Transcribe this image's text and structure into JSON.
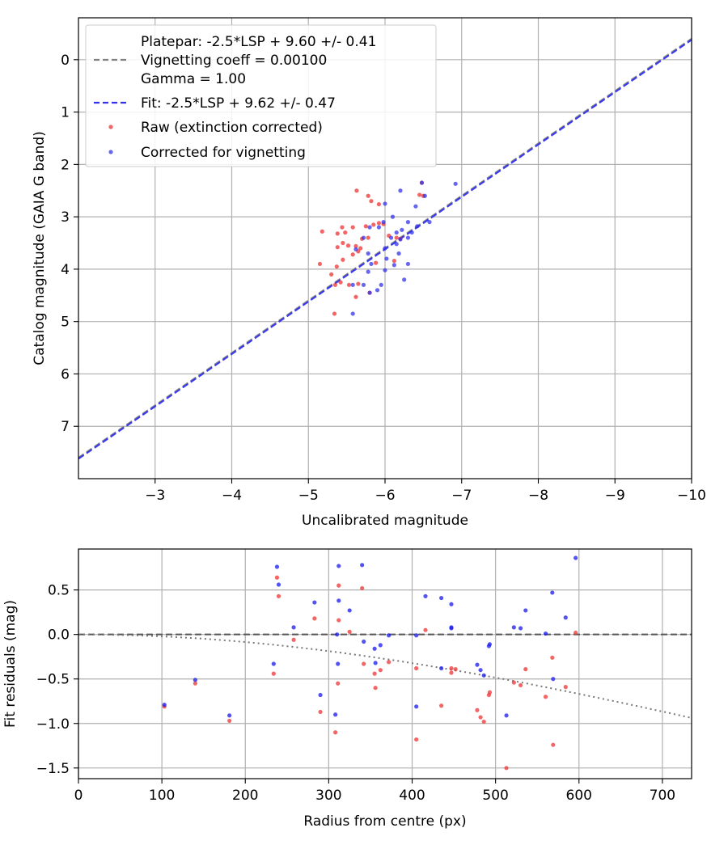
{
  "chart_data": [
    {
      "type": "scatter",
      "xlabel": "Uncalibrated magnitude",
      "ylabel": "Catalog magnitude (GAIA G band)",
      "xlim": [
        -2,
        -10
      ],
      "ylim": [
        8,
        -0.8
      ],
      "x_ticks": [
        -3,
        -4,
        -5,
        -6,
        -7,
        -8,
        -9,
        -10
      ],
      "x_tick_labels": [
        "−3",
        "−4",
        "−5",
        "−6",
        "−7",
        "−8",
        "−9",
        "−10"
      ],
      "y_ticks": [
        0,
        1,
        2,
        3,
        4,
        5,
        6,
        7
      ],
      "y_tick_labels": [
        "0",
        "1",
        "2",
        "3",
        "4",
        "5",
        "6",
        "7"
      ],
      "grid": true,
      "legend_position": "top-left",
      "legend": [
        "Platepar: -2.5*LSP + 9.60 +/- 0.41",
        "Vignetting coeff = 0.00100",
        "Gamma = 1.00",
        "Fit: -2.5*LSP + 9.62 +/- 0.47",
        "Raw (extinction corrected)",
        "Corrected for vignetting"
      ],
      "lines": [
        {
          "name": "Platepar",
          "style": "dashed",
          "color": "#808080",
          "slope": -2.5,
          "intercept": 9.6
        },
        {
          "name": "Fit",
          "style": "dashed",
          "color": "#3333ee",
          "slope": -2.5,
          "intercept": 9.62
        }
      ],
      "series": [
        {
          "name": "Raw (extinction corrected)",
          "color": "#ee3333",
          "points": [
            [
              -6.48,
              2.35
            ],
            [
              -5.63,
              2.5
            ],
            [
              -5.78,
              2.6
            ],
            [
              -5.82,
              2.7
            ],
            [
              -5.92,
              2.76
            ],
            [
              -6.5,
              2.6
            ],
            [
              -5.58,
              3.2
            ],
            [
              -5.75,
              3.18
            ],
            [
              -5.85,
              3.15
            ],
            [
              -5.92,
              3.12
            ],
            [
              -5.98,
              3.14
            ],
            [
              -5.18,
              3.28
            ],
            [
              -5.38,
              3.32
            ],
            [
              -5.44,
              3.2
            ],
            [
              -5.48,
              3.3
            ],
            [
              -5.7,
              3.42
            ],
            [
              -5.78,
              3.4
            ],
            [
              -6.05,
              3.36
            ],
            [
              -6.15,
              3.4
            ],
            [
              -5.38,
              3.58
            ],
            [
              -5.45,
              3.5
            ],
            [
              -5.52,
              3.55
            ],
            [
              -5.62,
              3.56
            ],
            [
              -5.68,
              3.6
            ],
            [
              -5.15,
              3.9
            ],
            [
              -5.37,
              3.95
            ],
            [
              -5.45,
              3.82
            ],
            [
              -5.58,
              3.72
            ],
            [
              -5.65,
              3.66
            ],
            [
              -5.88,
              3.88
            ],
            [
              -6.12,
              3.84
            ],
            [
              -5.3,
              4.1
            ],
            [
              -5.35,
              4.3
            ],
            [
              -5.42,
              4.25
            ],
            [
              -5.53,
              4.3
            ],
            [
              -5.65,
              4.28
            ],
            [
              -5.8,
              4.45
            ],
            [
              -5.62,
              4.53
            ],
            [
              -5.34,
              4.85
            ],
            [
              -6.2,
              3.42
            ],
            [
              -6.45,
              2.58
            ]
          ]
        },
        {
          "name": "Corrected for vignetting",
          "color": "#3333ee",
          "points": [
            [
              -6.92,
              2.37
            ],
            [
              -6.52,
              2.6
            ],
            [
              -6.48,
              2.35
            ],
            [
              -6.2,
              2.5
            ],
            [
              -6.4,
              2.8
            ],
            [
              -6.0,
              2.75
            ],
            [
              -6.1,
              3.0
            ],
            [
              -5.92,
              3.2
            ],
            [
              -6.58,
              3.1
            ],
            [
              -6.3,
              3.1
            ],
            [
              -6.35,
              3.3
            ],
            [
              -6.42,
              3.18
            ],
            [
              -6.15,
              3.3
            ],
            [
              -5.98,
              3.1
            ],
            [
              -5.8,
              3.2
            ],
            [
              -5.72,
              3.4
            ],
            [
              -6.08,
              3.4
            ],
            [
              -6.22,
              3.25
            ],
            [
              -6.3,
              3.4
            ],
            [
              -5.62,
              3.62
            ],
            [
              -5.78,
              3.7
            ],
            [
              -6.0,
              3.6
            ],
            [
              -6.15,
              3.52
            ],
            [
              -6.02,
              3.8
            ],
            [
              -6.12,
              3.92
            ],
            [
              -6.3,
              3.9
            ],
            [
              -6.18,
              3.7
            ],
            [
              -5.82,
              3.9
            ],
            [
              -6.0,
              4.02
            ],
            [
              -5.78,
              4.05
            ],
            [
              -6.25,
              4.2
            ],
            [
              -5.72,
              4.3
            ],
            [
              -5.9,
              4.4
            ],
            [
              -5.95,
              4.3
            ],
            [
              -5.8,
              4.45
            ],
            [
              -5.58,
              4.3
            ],
            [
              -5.58,
              4.85
            ],
            [
              -6.2,
              3.43
            ]
          ]
        }
      ]
    },
    {
      "type": "scatter",
      "xlabel": "Radius from centre (px)",
      "ylabel": "Fit residuals (mag)",
      "xlim": [
        0,
        735
      ],
      "ylim": [
        -1.62,
        0.96
      ],
      "x_ticks": [
        0,
        100,
        200,
        300,
        400,
        500,
        600,
        700
      ],
      "x_tick_labels": [
        "0",
        "100",
        "200",
        "300",
        "400",
        "500",
        "600",
        "700"
      ],
      "y_ticks": [
        0.5,
        0,
        -0.5,
        -1,
        -1.5
      ],
      "y_tick_labels": [
        "0.5",
        "0.0",
        "−0.5",
        "−1.0",
        "−1.5"
      ],
      "grid": true,
      "lines": [
        {
          "name": "zero",
          "style": "dashed",
          "color": "#555555",
          "y": 0
        },
        {
          "name": "vignetting",
          "style": "dotted",
          "color": "#777777",
          "coeff": 0.001
        }
      ],
      "series": [
        {
          "name": "",
          "color": "#ee3333",
          "points": [
            [
              103,
              -0.81
            ],
            [
              140,
              -0.55
            ],
            [
              181,
              -0.97
            ],
            [
              234,
              -0.44
            ],
            [
              238,
              0.64
            ],
            [
              240,
              0.43
            ],
            [
              258,
              -0.06
            ],
            [
              283,
              0.18
            ],
            [
              290,
              -0.87
            ],
            [
              308,
              -1.1
            ],
            [
              312,
              0.55
            ],
            [
              312,
              0.16
            ],
            [
              311,
              -0.55
            ],
            [
              325,
              0.03
            ],
            [
              340,
              0.52
            ],
            [
              342,
              -0.33
            ],
            [
              355,
              -0.44
            ],
            [
              356,
              -0.6
            ],
            [
              362,
              -0.4
            ],
            [
              372,
              -0.31
            ],
            [
              405,
              -1.18
            ],
            [
              405,
              -0.38
            ],
            [
              416,
              0.05
            ],
            [
              435,
              -0.8
            ],
            [
              447,
              -0.38
            ],
            [
              447,
              -0.43
            ],
            [
              452,
              -0.39
            ],
            [
              478,
              -0.85
            ],
            [
              482,
              -0.93
            ],
            [
              486,
              -0.98
            ],
            [
              492,
              -0.68
            ],
            [
              493,
              -0.65
            ],
            [
              513,
              -1.5
            ],
            [
              522,
              -0.54
            ],
            [
              530,
              -0.57
            ],
            [
              536,
              -0.39
            ],
            [
              568,
              -0.26
            ],
            [
              569,
              -1.24
            ],
            [
              584,
              -0.59
            ],
            [
              596,
              0.02
            ],
            [
              560,
              -0.7
            ]
          ]
        },
        {
          "name": "",
          "color": "#1a1aee",
          "points": [
            [
              103,
              -0.79
            ],
            [
              140,
              -0.51
            ],
            [
              181,
              -0.91
            ],
            [
              234,
              -0.33
            ],
            [
              238,
              0.76
            ],
            [
              240,
              0.56
            ],
            [
              258,
              0.08
            ],
            [
              283,
              0.36
            ],
            [
              290,
              -0.68
            ],
            [
              308,
              -0.9
            ],
            [
              312,
              0.77
            ],
            [
              312,
              0.38
            ],
            [
              311,
              -0.33
            ],
            [
              310,
              0.0
            ],
            [
              325,
              0.27
            ],
            [
              340,
              0.78
            ],
            [
              342,
              -0.08
            ],
            [
              355,
              -0.16
            ],
            [
              356,
              -0.32
            ],
            [
              362,
              -0.12
            ],
            [
              372,
              -0.01
            ],
            [
              405,
              -0.81
            ],
            [
              405,
              -0.01
            ],
            [
              416,
              0.43
            ],
            [
              435,
              0.41
            ],
            [
              435,
              -0.38
            ],
            [
              447,
              0.08
            ],
            [
              447,
              0.07
            ],
            [
              447,
              0.34
            ],
            [
              478,
              -0.34
            ],
            [
              482,
              -0.4
            ],
            [
              486,
              -0.46
            ],
            [
              492,
              -0.13
            ],
            [
              493,
              -0.11
            ],
            [
              513,
              -0.91
            ],
            [
              522,
              0.08
            ],
            [
              536,
              0.27
            ],
            [
              530,
              0.07
            ],
            [
              568,
              0.47
            ],
            [
              569,
              -0.5
            ],
            [
              584,
              0.19
            ],
            [
              596,
              0.86
            ],
            [
              560,
              0.01
            ]
          ]
        }
      ]
    }
  ],
  "colors": {
    "raw": "#ee3333",
    "corrected": "#3333ee",
    "platepar_line": "#808080",
    "fit_line": "#3333ee",
    "grid": "#b0b0b0"
  }
}
